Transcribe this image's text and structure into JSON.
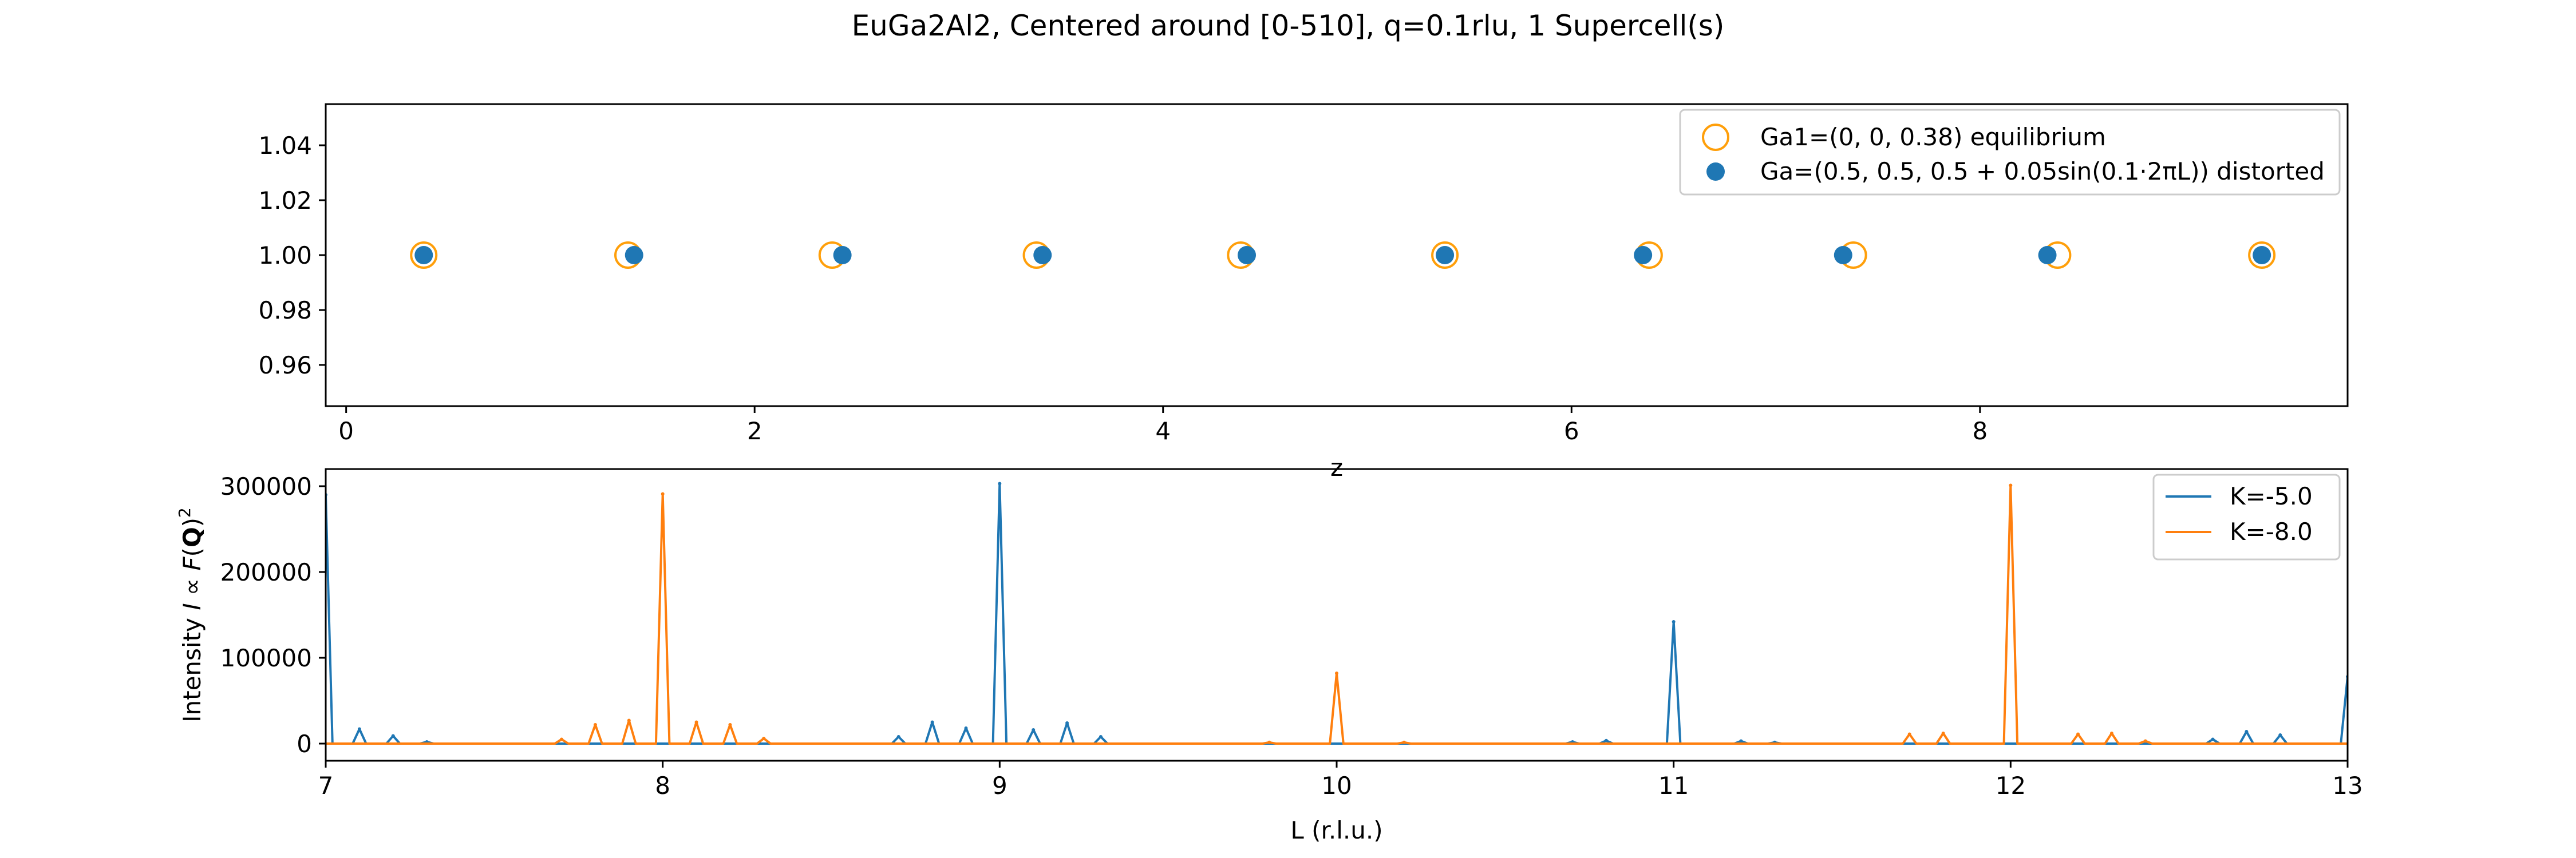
{
  "figure": {
    "title": "EuGa2Al2, Centered around [0-510], q=0.1rlu, 1 Supercell(s)"
  },
  "chart_data": [
    {
      "type": "scatter",
      "title": "",
      "xlabel": "z",
      "ylabel": "",
      "xlim": [
        -0.1,
        9.8
      ],
      "ylim": [
        0.945,
        1.055
      ],
      "xticks": [
        0,
        2,
        4,
        6,
        8
      ],
      "yticks": [
        0.96,
        0.98,
        1.0,
        1.02,
        1.04
      ],
      "xtick_labels": [
        "0",
        "2",
        "4",
        "6",
        "8"
      ],
      "ytick_labels": [
        "0.96",
        "0.98",
        "1.00",
        "1.02",
        "1.04"
      ],
      "grid": false,
      "legend_position": "upper-right",
      "series": [
        {
          "name": "Ga1=(0, 0, 0.38) equilibrium",
          "marker": "open-circle",
          "color": "#ff9f0a",
          "x": [
            0.38,
            1.38,
            2.38,
            3.38,
            4.38,
            5.38,
            6.38,
            7.38,
            8.38,
            9.38
          ],
          "y": [
            1,
            1,
            1,
            1,
            1,
            1,
            1,
            1,
            1,
            1
          ]
        },
        {
          "name": "Ga=(0.5, 0.5, 0.5 + 0.05sin(0.1·2πL)) distorted",
          "marker": "filled-circle",
          "color": "#1f77b4",
          "x": [
            0.38,
            1.41,
            2.43,
            3.41,
            4.41,
            5.38,
            6.35,
            7.33,
            8.33,
            9.38
          ],
          "y": [
            1,
            1,
            1,
            1,
            1,
            1,
            1,
            1,
            1,
            1
          ]
        }
      ]
    },
    {
      "type": "line",
      "title": "",
      "xlabel": "L (r.l.u.)",
      "ylabel": "Intensity I ∝ F(Q)²",
      "xlim": [
        7,
        13
      ],
      "ylim": [
        -20000,
        320000
      ],
      "xticks": [
        7,
        8,
        9,
        10,
        11,
        12,
        13
      ],
      "yticks": [
        0,
        100000,
        200000,
        300000
      ],
      "xtick_labels": [
        "7",
        "8",
        "9",
        "10",
        "11",
        "12",
        "13"
      ],
      "ytick_labels": [
        "0",
        "100000",
        "200000",
        "300000"
      ],
      "grid": false,
      "legend_position": "upper-right",
      "baseline_step": 0.05,
      "peak_halfwidth": 0.02,
      "series": [
        {
          "name": "K=-5.0",
          "color": "#1f77b4",
          "peaks": [
            [
              7.0,
              290000
            ],
            [
              7.1,
              17000
            ],
            [
              7.2,
              9000
            ],
            [
              7.3,
              2000
            ],
            [
              8.7,
              8000
            ],
            [
              8.8,
              25000
            ],
            [
              8.9,
              18000
            ],
            [
              9.0,
              303000
            ],
            [
              9.1,
              16000
            ],
            [
              9.2,
              24000
            ],
            [
              9.3,
              8000
            ],
            [
              10.7,
              2000
            ],
            [
              10.8,
              3500
            ],
            [
              11.0,
              142000
            ],
            [
              11.2,
              3000
            ],
            [
              11.3,
              1500
            ],
            [
              12.6,
              5000
            ],
            [
              12.7,
              14000
            ],
            [
              12.8,
              10000
            ],
            [
              13.0,
              78000
            ]
          ]
        },
        {
          "name": "K=-8.0",
          "color": "#ff7f0e",
          "peaks": [
            [
              7.7,
              5000
            ],
            [
              7.8,
              22000
            ],
            [
              7.9,
              27000
            ],
            [
              8.0,
              291000
            ],
            [
              8.1,
              25000
            ],
            [
              8.2,
              22000
            ],
            [
              8.3,
              6000
            ],
            [
              9.8,
              1500
            ],
            [
              10.0,
              82000
            ],
            [
              10.2,
              1500
            ],
            [
              11.7,
              11000
            ],
            [
              11.8,
              12000
            ],
            [
              12.0,
              301000
            ],
            [
              12.2,
              11000
            ],
            [
              12.3,
              12000
            ],
            [
              12.4,
              3000
            ]
          ]
        }
      ]
    }
  ]
}
